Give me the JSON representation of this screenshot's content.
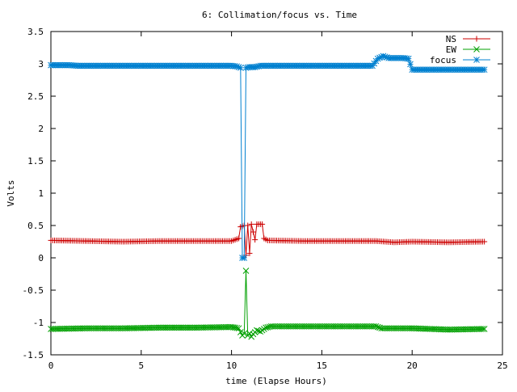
{
  "chart_data": {
    "type": "line",
    "title": "6: Collimation/focus vs. Time",
    "xlabel": "time (Elapse Hours)",
    "ylabel": "Volts",
    "xlim": [
      0,
      25
    ],
    "ylim": [
      -1.5,
      3.5
    ],
    "x_ticks": [
      0,
      5,
      10,
      15,
      20,
      25
    ],
    "x_tick_labels": [
      "0",
      "5",
      "10",
      "15",
      "20",
      "25"
    ],
    "y_ticks": [
      -1.5,
      -1,
      -0.5,
      0,
      0.5,
      1,
      1.5,
      2,
      2.5,
      3,
      3.5
    ],
    "y_tick_labels": [
      "-1.5",
      "-1",
      "-0.5",
      "0",
      "0.5",
      "1",
      "1.5",
      "2",
      "2.5",
      "3",
      "3.5"
    ],
    "grid": false,
    "legend_position": "top-right",
    "series": [
      {
        "name": "NS",
        "color": "#cc0000",
        "marker": "plus",
        "points": [
          [
            0,
            0.27
          ],
          [
            2,
            0.26
          ],
          [
            4,
            0.25
          ],
          [
            6,
            0.26
          ],
          [
            8,
            0.26
          ],
          [
            10,
            0.26
          ],
          [
            10.4,
            0.3
          ],
          [
            10.5,
            0.48
          ],
          [
            10.7,
            0.5
          ],
          [
            10.8,
            0.04
          ],
          [
            10.9,
            0.5
          ],
          [
            11.0,
            0.07
          ],
          [
            11.1,
            0.52
          ],
          [
            11.3,
            0.28
          ],
          [
            11.4,
            0.52
          ],
          [
            11.7,
            0.52
          ],
          [
            11.8,
            0.3
          ],
          [
            12,
            0.27
          ],
          [
            14,
            0.26
          ],
          [
            16,
            0.26
          ],
          [
            18,
            0.26
          ],
          [
            19,
            0.24
          ],
          [
            20,
            0.25
          ],
          [
            22,
            0.24
          ],
          [
            24,
            0.25
          ]
        ]
      },
      {
        "name": "EW",
        "color": "#00a000",
        "marker": "x",
        "points": [
          [
            0,
            -1.1
          ],
          [
            2,
            -1.09
          ],
          [
            4,
            -1.09
          ],
          [
            6,
            -1.08
          ],
          [
            8,
            -1.08
          ],
          [
            10,
            -1.07
          ],
          [
            10.4,
            -1.09
          ],
          [
            10.5,
            -1.15
          ],
          [
            10.6,
            -1.2
          ],
          [
            10.7,
            -1.17
          ],
          [
            10.8,
            -0.2
          ],
          [
            10.9,
            -1.2
          ],
          [
            11.0,
            -1.17
          ],
          [
            11.1,
            -1.22
          ],
          [
            11.2,
            -1.18
          ],
          [
            11.4,
            -1.12
          ],
          [
            11.6,
            -1.14
          ],
          [
            11.9,
            -1.08
          ],
          [
            12.2,
            -1.06
          ],
          [
            14,
            -1.06
          ],
          [
            16,
            -1.06
          ],
          [
            18,
            -1.06
          ],
          [
            18.3,
            -1.09
          ],
          [
            20,
            -1.09
          ],
          [
            22,
            -1.11
          ],
          [
            24,
            -1.1
          ]
        ]
      },
      {
        "name": "focus",
        "color": "#0080d0",
        "marker": "star",
        "points": [
          [
            0,
            2.98
          ],
          [
            1,
            2.98
          ],
          [
            1.5,
            2.97
          ],
          [
            3,
            2.97
          ],
          [
            5,
            2.97
          ],
          [
            7,
            2.97
          ],
          [
            9,
            2.97
          ],
          [
            10,
            2.97
          ],
          [
            10.3,
            2.96
          ],
          [
            10.5,
            2.94
          ],
          [
            10.6,
            0.0
          ],
          [
            10.7,
            0.0
          ],
          [
            10.8,
            2.94
          ],
          [
            11.0,
            2.95
          ],
          [
            11.3,
            2.95
          ],
          [
            11.6,
            2.97
          ],
          [
            12,
            2.97
          ],
          [
            14,
            2.97
          ],
          [
            16,
            2.97
          ],
          [
            17.8,
            2.97
          ],
          [
            18.1,
            3.08
          ],
          [
            18.4,
            3.12
          ],
          [
            18.7,
            3.09
          ],
          [
            19.5,
            3.09
          ],
          [
            19.8,
            3.08
          ],
          [
            20,
            2.91
          ],
          [
            22,
            2.91
          ],
          [
            24,
            2.91
          ]
        ]
      }
    ]
  }
}
